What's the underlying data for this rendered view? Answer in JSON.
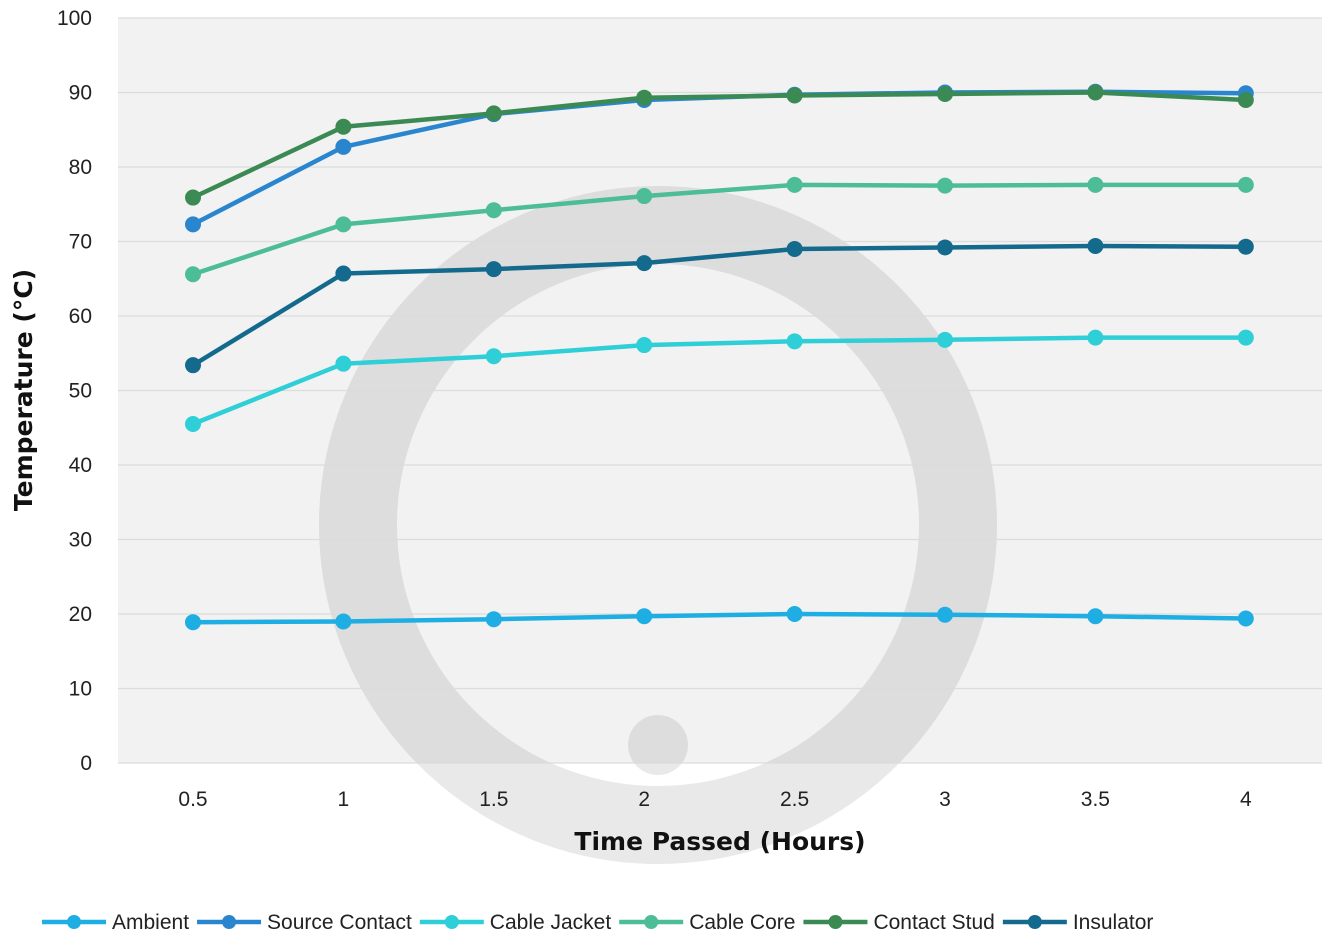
{
  "chart_data": {
    "type": "line",
    "xlabel": "Time Passed (Hours)",
    "ylabel": "Temperature (°C)",
    "categories": [
      "0.5",
      "1",
      "1.5",
      "2",
      "2.5",
      "3",
      "3.5",
      "4"
    ],
    "ylim": [
      0,
      100
    ],
    "yticks": [
      "0",
      "10",
      "20",
      "30",
      "40",
      "50",
      "60",
      "70",
      "80",
      "90",
      "100"
    ],
    "grid": true,
    "legend_position": "bottom",
    "plot_background": "#f2f2f2",
    "series": [
      {
        "name": "Ambient",
        "color": "#1eaee3",
        "values": [
          18.9,
          19.0,
          19.3,
          19.7,
          20.0,
          19.9,
          19.7,
          19.4
        ]
      },
      {
        "name": "Source Contact",
        "color": "#2a85cf",
        "values": [
          72.3,
          82.7,
          87.1,
          89.0,
          89.7,
          90.0,
          90.1,
          89.9
        ]
      },
      {
        "name": "Cable Jacket",
        "color": "#2ecfd6",
        "values": [
          45.5,
          53.6,
          54.6,
          56.1,
          56.6,
          56.8,
          57.1,
          57.1
        ]
      },
      {
        "name": "Cable Core",
        "color": "#4cbd97",
        "values": [
          65.6,
          72.3,
          74.2,
          76.1,
          77.6,
          77.5,
          77.6,
          77.6
        ]
      },
      {
        "name": "Contact Stud",
        "color": "#3b8a53",
        "values": [
          75.9,
          85.4,
          87.2,
          89.3,
          89.6,
          89.8,
          90.0,
          89.0
        ]
      },
      {
        "name": "Insulator",
        "color": "#146a8c",
        "values": [
          53.4,
          65.7,
          66.3,
          67.1,
          69.0,
          69.2,
          69.4,
          69.3
        ]
      }
    ]
  }
}
